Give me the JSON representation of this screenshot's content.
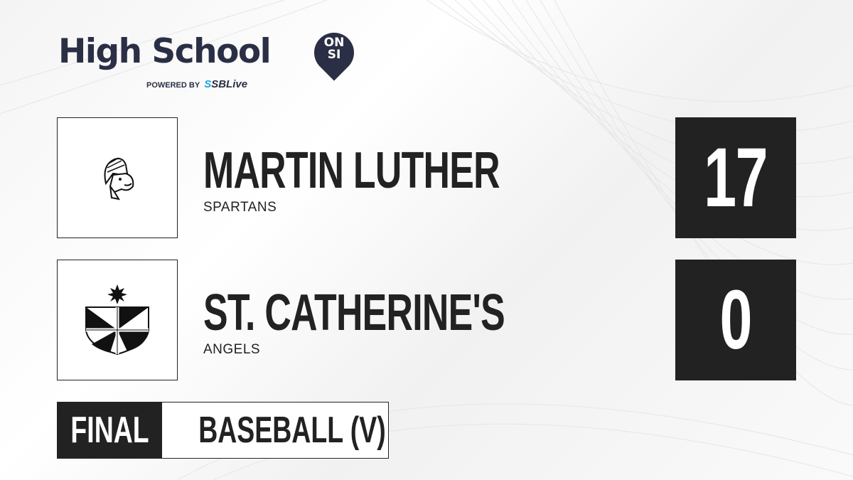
{
  "brand": {
    "title": "High School",
    "badge_top": "ON",
    "badge_bottom": "SI",
    "powered_by": "POWERED BY",
    "partner_s": "S",
    "partner": "SBLive"
  },
  "teams": [
    {
      "name": "MARTIN LUTHER",
      "mascot": "SPARTANS",
      "score": "17",
      "logo": "spartan-helmet-logo"
    },
    {
      "name": "ST. CATHERINE'S",
      "mascot": "ANGELS",
      "score": "0",
      "logo": "shield-crest-logo"
    }
  ],
  "game": {
    "status": "FINAL",
    "sport": "BASEBALL (V)"
  },
  "colors": {
    "dark": "#222222",
    "brand_navy": "#2b2f45",
    "accent_blue": "#1ba6e0"
  }
}
